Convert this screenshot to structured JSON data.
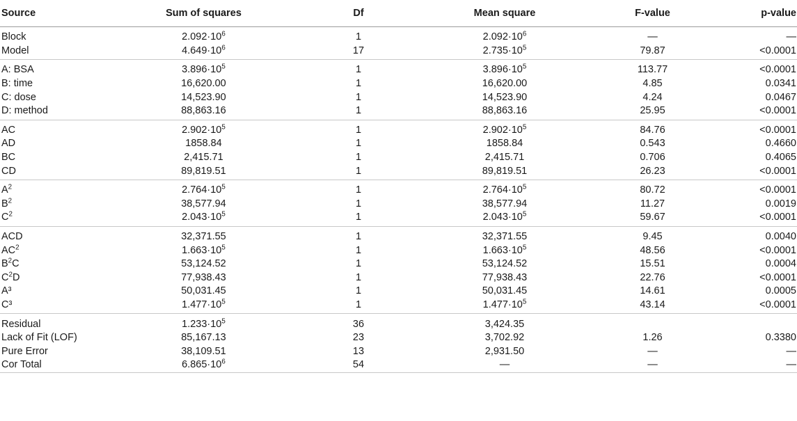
{
  "table": {
    "headers": {
      "source": "Source",
      "ss": "Sum of squares",
      "df": "Df",
      "ms": "Mean square",
      "f": "F-value",
      "p": "p-value"
    },
    "groups": [
      [
        {
          "source": [
            "Block"
          ],
          "ss": [
            "2.092·10",
            "6"
          ],
          "df": "1",
          "ms": [
            "2.092·10",
            "6"
          ],
          "f": "—",
          "p": "—"
        },
        {
          "source": [
            "Model"
          ],
          "ss": [
            "4.649·10",
            "6"
          ],
          "df": "17",
          "ms": [
            "2.735·10",
            "5"
          ],
          "f": "79.87",
          "p": "<0.0001"
        }
      ],
      [
        {
          "source": [
            "A: BSA"
          ],
          "ss": [
            "3.896·10",
            "5"
          ],
          "df": "1",
          "ms": [
            "3.896·10",
            "5"
          ],
          "f": "113.77",
          "p": "<0.0001"
        },
        {
          "source": [
            "B: time"
          ],
          "ss": [
            "16,620.00"
          ],
          "df": "1",
          "ms": [
            "16,620.00"
          ],
          "f": "4.85",
          "p": "0.0341"
        },
        {
          "source": [
            "C: dose"
          ],
          "ss": [
            "14,523.90"
          ],
          "df": "1",
          "ms": [
            "14,523.90"
          ],
          "f": "4.24",
          "p": "0.0467"
        },
        {
          "source": [
            "D: method"
          ],
          "ss": [
            "88,863.16"
          ],
          "df": "1",
          "ms": [
            "88,863.16"
          ],
          "f": "25.95",
          "p": "<0.0001"
        }
      ],
      [
        {
          "source": [
            "AC"
          ],
          "ss": [
            "2.902·10",
            "5"
          ],
          "df": "1",
          "ms": [
            "2.902·10",
            "5"
          ],
          "f": "84.76",
          "p": "<0.0001"
        },
        {
          "source": [
            "AD"
          ],
          "ss": [
            "1858.84"
          ],
          "df": "1",
          "ms": [
            "1858.84"
          ],
          "f": "0.543",
          "p": "0.4660"
        },
        {
          "source": [
            "BC"
          ],
          "ss": [
            "2,415.71"
          ],
          "df": "1",
          "ms": [
            "2,415.71"
          ],
          "f": "0.706",
          "p": "0.4065"
        },
        {
          "source": [
            "CD"
          ],
          "ss": [
            "89,819.51"
          ],
          "df": "1",
          "ms": [
            "89,819.51"
          ],
          "f": "26.23",
          "p": "<0.0001"
        }
      ],
      [
        {
          "source": [
            "A",
            "2"
          ],
          "ss": [
            "2.764·10",
            "5"
          ],
          "df": "1",
          "ms": [
            "2.764·10",
            "5"
          ],
          "f": "80.72",
          "p": "<0.0001"
        },
        {
          "source": [
            "B",
            "2"
          ],
          "ss": [
            "38,577.94"
          ],
          "df": "1",
          "ms": [
            "38,577.94"
          ],
          "f": "11.27",
          "p": "0.0019"
        },
        {
          "source": [
            "C",
            "2"
          ],
          "ss": [
            "2.043·10",
            "5"
          ],
          "df": "1",
          "ms": [
            "2.043·10",
            "5"
          ],
          "f": "59.67",
          "p": "<0.0001"
        }
      ],
      [
        {
          "source": [
            "ACD"
          ],
          "ss": [
            "32,371.55"
          ],
          "df": "1",
          "ms": [
            "32,371.55"
          ],
          "f": "9.45",
          "p": "0.0040"
        },
        {
          "source": [
            "AC",
            "2"
          ],
          "ss": [
            "1.663·10",
            "5"
          ],
          "df": "1",
          "ms": [
            "1.663·10",
            "5"
          ],
          "f": "48.56",
          "p": "<0.0001"
        },
        {
          "source": [
            "B",
            "2",
            "C"
          ],
          "ss": [
            "53,124.52"
          ],
          "df": "1",
          "ms": [
            "53,124.52"
          ],
          "f": "15.51",
          "p": "0.0004"
        },
        {
          "source": [
            "C",
            "2",
            "D"
          ],
          "ss": [
            "77,938.43"
          ],
          "df": "1",
          "ms": [
            "77,938.43"
          ],
          "f": "22.76",
          "p": "<0.0001"
        },
        {
          "source": [
            "A³"
          ],
          "ss": [
            "50,031.45"
          ],
          "df": "1",
          "ms": [
            "50,031.45"
          ],
          "f": "14.61",
          "p": "0.0005"
        },
        {
          "source": [
            "C³"
          ],
          "ss": [
            "1.477·10",
            "5"
          ],
          "df": "1",
          "ms": [
            "1.477·10",
            "5"
          ],
          "f": "43.14",
          "p": "<0.0001"
        }
      ],
      [
        {
          "source": [
            "Residual"
          ],
          "ss": [
            "1.233·10",
            "5"
          ],
          "df": "36",
          "ms": [
            "3,424.35"
          ],
          "f": "",
          "p": ""
        },
        {
          "source": [
            "Lack of Fit (LOF)"
          ],
          "ss": [
            "85,167.13"
          ],
          "df": "23",
          "ms": [
            "3,702.92"
          ],
          "f": "1.26",
          "p": "0.3380"
        },
        {
          "source": [
            "Pure Error"
          ],
          "ss": [
            "38,109.51"
          ],
          "df": "13",
          "ms": [
            "2,931.50"
          ],
          "f": "—",
          "p": "—"
        },
        {
          "source": [
            "Cor Total"
          ],
          "ss": [
            "6.865·10",
            "6"
          ],
          "df": "54",
          "ms": [
            "—"
          ],
          "f": "—",
          "p": "—"
        }
      ]
    ]
  }
}
